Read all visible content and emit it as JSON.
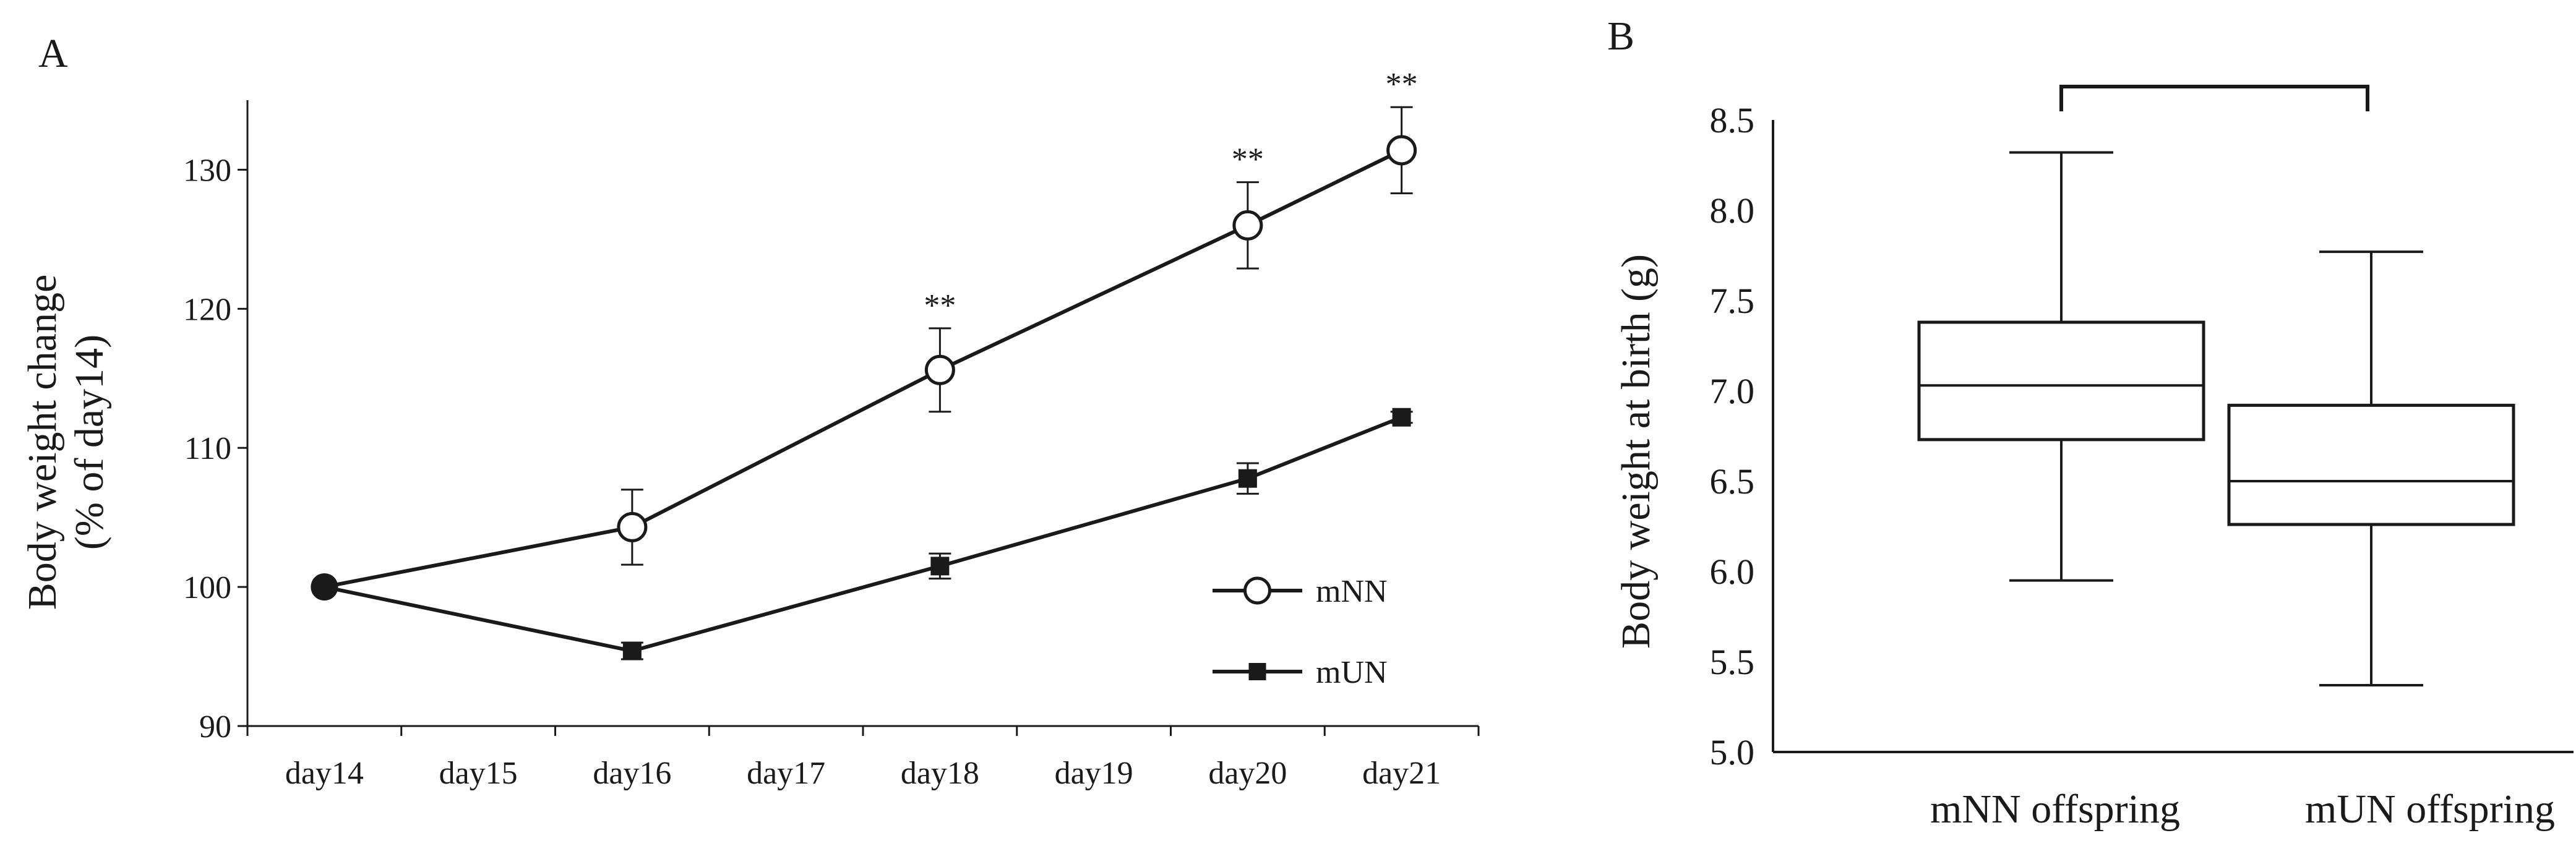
{
  "panel_a": {
    "label": "A",
    "chart_data": {
      "type": "line",
      "title": "",
      "xlabel": "",
      "ylabel": "Body weight change",
      "ylabel_line2": "(% of day14)",
      "categories": [
        "day14",
        "day15",
        "day16",
        "day17",
        "day18",
        "day19",
        "day20",
        "day21"
      ],
      "ylim": [
        90,
        135
      ],
      "yticks": [
        90,
        100,
        110,
        120,
        130
      ],
      "grid": false,
      "legend_position": "lower-right",
      "series": [
        {
          "name": "mNN",
          "marker": "open-circle",
          "x": [
            0,
            2,
            4,
            6,
            7
          ],
          "values": [
            100,
            104.3,
            115.6,
            126,
            131.4
          ],
          "errors": [
            0,
            2.7,
            3,
            3.1,
            3.1
          ]
        },
        {
          "name": "mUN",
          "marker": "filled-square",
          "x": [
            0,
            2,
            4,
            6,
            7
          ],
          "values": [
            100,
            95.4,
            101.5,
            107.8,
            112.2
          ],
          "errors": [
            0,
            0.6,
            0.9,
            1.1,
            0.4
          ]
        }
      ],
      "significance": [
        {
          "x": 4,
          "label": "**"
        },
        {
          "x": 6,
          "label": "**"
        },
        {
          "x": 7,
          "label": "**"
        }
      ]
    }
  },
  "panel_b": {
    "label": "B",
    "chart_data": {
      "type": "box",
      "title": "",
      "xlabel": "",
      "ylabel": "Body weight at birth (g)",
      "ylim": [
        5.0,
        8.5
      ],
      "yticks": [
        "5.0",
        "5.5",
        "6.0",
        "6.5",
        "7.0",
        "7.5",
        "8.0",
        "8.5"
      ],
      "grid": false,
      "categories": [
        "mNN offspring",
        "mUN offspring"
      ],
      "boxes": [
        {
          "name": "mNN offspring",
          "min": 5.95,
          "q1": 6.73,
          "median": 7.03,
          "q3": 7.38,
          "max": 8.32
        },
        {
          "name": "mUN offspring",
          "min": 5.37,
          "q1": 6.26,
          "median": 6.5,
          "q3": 6.92,
          "max": 7.77
        }
      ],
      "comparison_bracket": {
        "from": 0,
        "to": 1
      }
    }
  }
}
